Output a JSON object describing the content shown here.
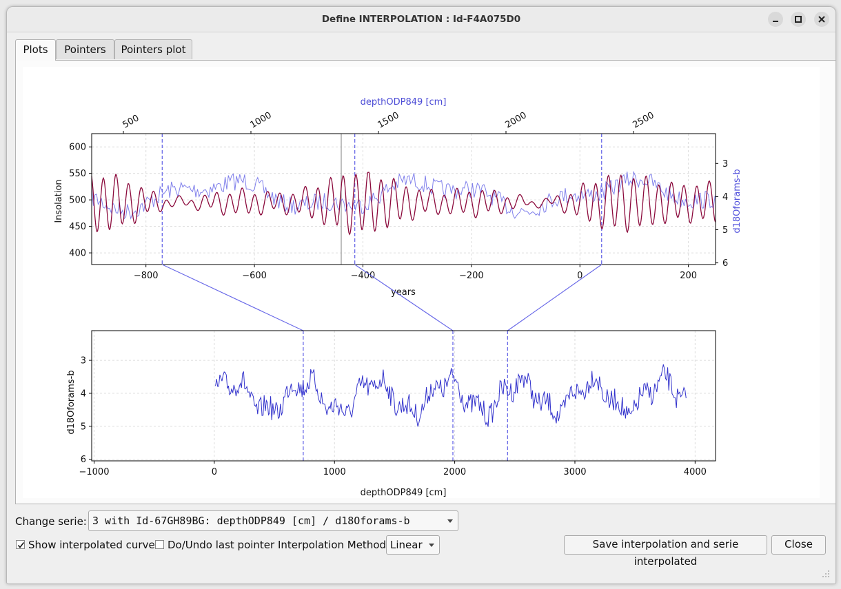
{
  "window": {
    "title": "Define INTERPOLATION : Id-F4A075D0"
  },
  "tabs": [
    {
      "label": "Plots",
      "active": true
    },
    {
      "label": "Pointers",
      "active": false
    },
    {
      "label": "Pointers plot",
      "active": false
    }
  ],
  "colors": {
    "insolation": "#8b0a3c",
    "d18o": "#3333cc",
    "pointer": "#6a6ae8"
  },
  "chart_data": [
    {
      "type": "line",
      "xlabel": "years",
      "ylabel": "Insolation",
      "y2label": "d18Oforams-b",
      "x2label": "depthODP849 [cm]",
      "xlim": [
        -900,
        250
      ],
      "ylim": [
        378,
        625
      ],
      "y2lim": [
        6.05,
        2.1
      ],
      "xticks": [
        "−800",
        "−600",
        "−400",
        "−200",
        "0",
        "200"
      ],
      "yticks": [
        "400",
        "450",
        "500",
        "550",
        "600"
      ],
      "y2ticks": [
        "3",
        "4",
        "5",
        "6"
      ],
      "x2ticks": [
        "500",
        "1000",
        "1500",
        "2000",
        "2500"
      ],
      "series": [
        {
          "name": "Insolation"
        },
        {
          "name": "d18Oforams-b"
        }
      ],
      "pointers_x": [
        -770,
        -415,
        40
      ],
      "cursor_x": -440,
      "grid": true
    },
    {
      "type": "line",
      "xlabel": "depthODP849 [cm]",
      "ylabel": "d18Oforams-b",
      "xlim": [
        -1020,
        4170
      ],
      "ylim": [
        6.05,
        2.1
      ],
      "xticks": [
        "−1000",
        "0",
        "1000",
        "2000",
        "3000",
        "4000"
      ],
      "yticks": [
        "3",
        "4",
        "5",
        "6"
      ],
      "pointers_x": [
        740,
        1985,
        2440
      ],
      "grid": true
    }
  ],
  "controls": {
    "change_serie_label": "Change serie:",
    "serie_value": "3 with Id-67GH89BG: depthODP849 [cm] / d18Oforams-b",
    "show_curve_label": "Show interpolated curve",
    "show_curve_checked": true,
    "undo_label": "Do/Undo last pointer",
    "undo_checked": false,
    "method_label": "Interpolation Method:",
    "method_value": "Linear",
    "save_label": "Save interpolation and serie interpolated",
    "close_label": "Close"
  }
}
